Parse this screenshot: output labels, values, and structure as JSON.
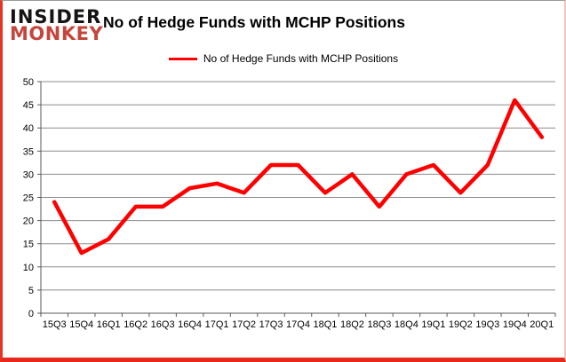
{
  "branding": {
    "line1": "INSIDER",
    "line2": "MONKEY"
  },
  "title": "No of Hedge Funds with MCHP Positions",
  "legend": {
    "label": "No of Hedge Funds with MCHP Positions"
  },
  "colors": {
    "line": "#FF0000",
    "logo_red": "#C4463C",
    "grid": "#8C8C8C",
    "axis": "#595959",
    "text": "#000000",
    "frame_red": "#E8281A"
  },
  "chart_data": {
    "type": "line",
    "title": "No of Hedge Funds with MCHP Positions",
    "categories": [
      "15Q3",
      "15Q4",
      "16Q1",
      "16Q2",
      "16Q3",
      "16Q4",
      "17Q1",
      "17Q2",
      "17Q3",
      "17Q4",
      "18Q1",
      "18Q2",
      "18Q3",
      "18Q4",
      "19Q1",
      "19Q2",
      "19Q3",
      "19Q4",
      "20Q1"
    ],
    "series": [
      {
        "name": "No of Hedge Funds with MCHP Positions",
        "values": [
          24,
          13,
          16,
          23,
          23,
          27,
          28,
          26,
          32,
          32,
          26,
          30,
          23,
          30,
          32,
          26,
          32,
          46,
          38
        ]
      }
    ],
    "xlabel": "",
    "ylabel": "",
    "ylim": [
      0,
      50
    ],
    "ytick_step": 5,
    "grid": true,
    "legend_position": "top-center"
  }
}
